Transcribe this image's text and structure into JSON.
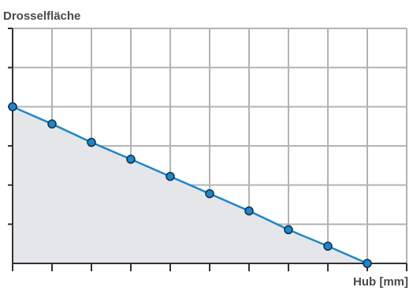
{
  "chart_data": {
    "type": "area",
    "title": "",
    "xlabel": "Hub [mm]",
    "ylabel": "Drosselfläche",
    "x": [
      0,
      1,
      2,
      3,
      4,
      5,
      6,
      7,
      8,
      9
    ],
    "series": [
      {
        "values": [
          4.0,
          3.56,
          3.09,
          2.66,
          2.22,
          1.78,
          1.34,
          0.86,
          0.44,
          0.0
        ]
      }
    ],
    "xlim": [
      0,
      10
    ],
    "ylim": [
      0,
      6
    ],
    "x_tick_labels": [],
    "y_tick_labels": [],
    "grid": true,
    "markers": true,
    "colors": {
      "line": "#1f86c8",
      "marker_fill": "#1f86c8",
      "marker_stroke": "#0d2f47",
      "area_fill": "#e5e6e9",
      "grid": "#b3b3b3",
      "axis": "#333333",
      "label": "#4a4a4a"
    }
  }
}
